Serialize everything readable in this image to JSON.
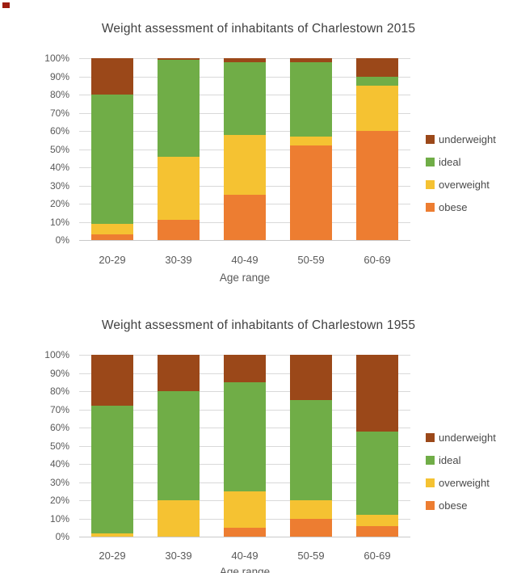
{
  "artifact": {
    "red_marker": true
  },
  "chart_data": [
    {
      "type": "bar",
      "stacked": true,
      "percent_stacked": true,
      "title": "Weight assessment of inhabitants of Charlestown 2015",
      "xlabel": "Age range",
      "categories": [
        "20-29",
        "30-39",
        "40-49",
        "50-59",
        "60-69"
      ],
      "yticks": [
        "0%",
        "10%",
        "20%",
        "30%",
        "40%",
        "50%",
        "60%",
        "70%",
        "80%",
        "90%",
        "100%"
      ],
      "ylim": [
        0,
        100
      ],
      "grid": true,
      "legend_position": "right",
      "legend_order": [
        "underweight",
        "ideal",
        "overweight",
        "obese"
      ],
      "series": [
        {
          "name": "obese",
          "color": "#ED7D31",
          "values": [
            3,
            11,
            25,
            52,
            60
          ]
        },
        {
          "name": "overweight",
          "color": "#F5C232",
          "values": [
            6,
            35,
            33,
            5,
            25
          ]
        },
        {
          "name": "ideal",
          "color": "#70AD47",
          "values": [
            71,
            53,
            40,
            41,
            5
          ]
        },
        {
          "name": "underweight",
          "color": "#9B4819",
          "values": [
            20,
            1,
            2,
            2,
            10
          ]
        }
      ]
    },
    {
      "type": "bar",
      "stacked": true,
      "percent_stacked": true,
      "title": "Weight assessment of inhabitants of Charlestown 1955",
      "xlabel": "Age range",
      "categories": [
        "20-29",
        "30-39",
        "40-49",
        "50-59",
        "60-69"
      ],
      "yticks": [
        "0%",
        "10%",
        "20%",
        "30%",
        "40%",
        "50%",
        "60%",
        "70%",
        "80%",
        "90%",
        "100%"
      ],
      "ylim": [
        0,
        100
      ],
      "grid": true,
      "legend_position": "right",
      "legend_order": [
        "underweight",
        "ideal",
        "overweight",
        "obese"
      ],
      "series": [
        {
          "name": "obese",
          "color": "#ED7D31",
          "values": [
            0,
            0,
            5,
            10,
            6
          ]
        },
        {
          "name": "overweight",
          "color": "#F5C232",
          "values": [
            2,
            20,
            20,
            10,
            6
          ]
        },
        {
          "name": "ideal",
          "color": "#70AD47",
          "values": [
            70,
            60,
            60,
            55,
            46
          ]
        },
        {
          "name": "underweight",
          "color": "#9B4819",
          "values": [
            28,
            20,
            15,
            25,
            42
          ]
        }
      ]
    }
  ],
  "colors": {
    "gridline": "#D9D9D9",
    "axis_text": "#595959",
    "title_text": "#404040",
    "underweight": "#9B4819",
    "ideal": "#70AD47",
    "overweight": "#F5C232",
    "obese": "#ED7D31"
  }
}
